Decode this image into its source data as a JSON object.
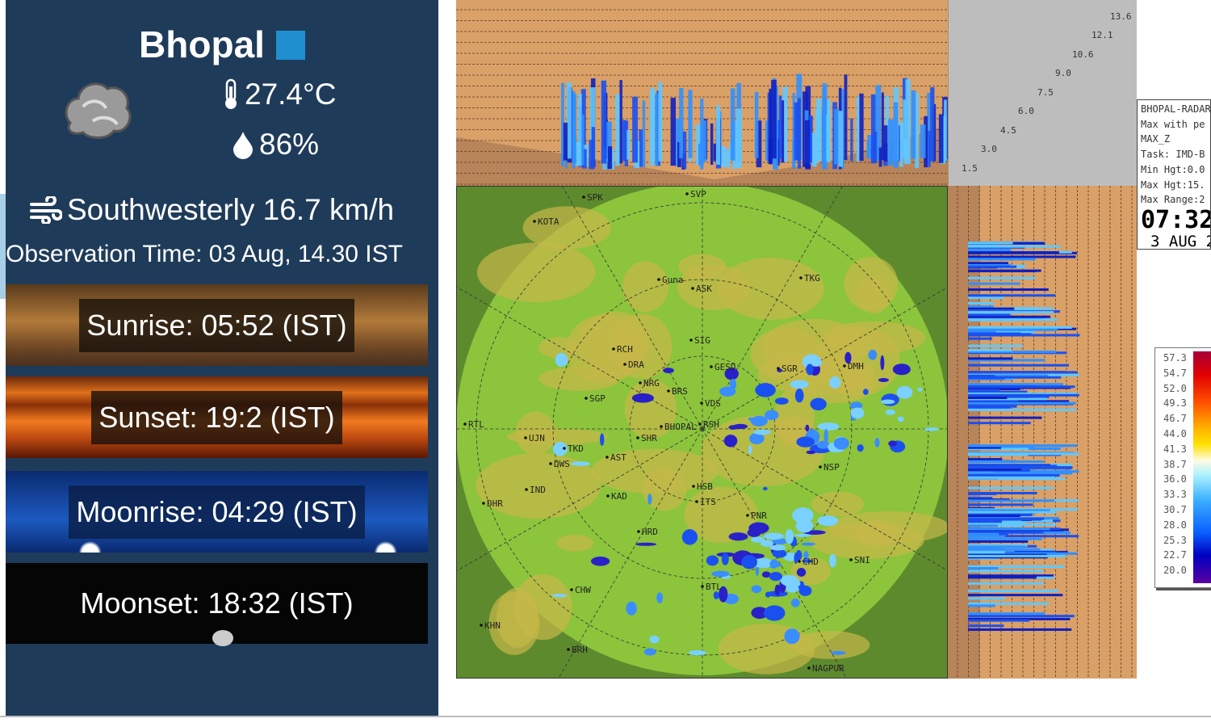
{
  "weather": {
    "city": "Bhopal",
    "temperature": "27.4°C",
    "humidity": "86%",
    "wind": "Southwesterly 16.7 km/h",
    "observation": "Observation Time: 03 Aug, 14.30 IST",
    "sunrise": "Sunrise: 05:52 (IST)",
    "sunset": "Sunset: 19:2 (IST)",
    "moonrise": "Moonrise: 04:29 (IST)",
    "moonset": "Moonset: 18:32 (IST)",
    "icons": {
      "condition": "cloud-icon",
      "temperature": "thermometer-icon",
      "humidity": "droplet-icon",
      "wind": "wind-icon"
    },
    "accent": "#1f8fd0"
  },
  "radar": {
    "info_lines": [
      "BHOPAL-RADAR",
      "Max with pe",
      "MAX_Z",
      "Task: IMD-B",
      "Min Hgt:0.0",
      "Max Hgt:15.",
      "Max Range:2"
    ],
    "time": "07:32",
    "date": "3 AUG 2",
    "height_labels": [
      "13.6",
      "12.1",
      "10.6",
      "9.0",
      "7.5",
      "6.0",
      "4.5",
      "3.0",
      "1.5"
    ],
    "scale_values": [
      "57.3",
      "54.7",
      "52.0",
      "49.3",
      "46.7",
      "44.0",
      "41.3",
      "38.7",
      "36.0",
      "33.3",
      "30.7",
      "28.0",
      "25.3",
      "22.7",
      "20.0"
    ],
    "stations": [
      "SPK",
      "KOTA",
      "SVP",
      "Guna",
      "ASK",
      "TKG",
      "SIG",
      "RCH",
      "DRA",
      "NRG",
      "BRS",
      "GESD",
      "SGR",
      "DMH",
      "SGP",
      "VDS",
      "RSH",
      "RTL",
      "BHOPAL",
      "UJN",
      "SHR",
      "TKD",
      "AST",
      "DWS",
      "IND",
      "KAD",
      "DHR",
      "HSB",
      "ITS",
      "PNR",
      "HRD",
      "CHD",
      "SNI",
      "CHW",
      "BTL",
      "KHN",
      "BRH",
      "NAGPUR",
      "NSP"
    ]
  }
}
